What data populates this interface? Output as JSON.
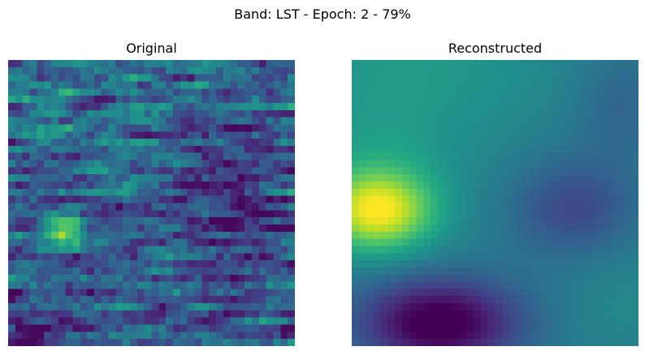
{
  "figure": {
    "title": "Band: LST - Epoch: 2 - 79%"
  },
  "chart_data": [
    {
      "type": "heatmap",
      "title": "Original",
      "colormap": "viridis",
      "axes_visible": false,
      "grid": false,
      "rows": 40,
      "cols": 40,
      "value_range": [
        0,
        1
      ],
      "features": [
        {
          "label": "bright hotspot",
          "center": [
            0.18,
            0.61
          ],
          "intensity": 0.95
        },
        {
          "label": "dark corner",
          "center": [
            0.05,
            0.97
          ],
          "intensity": 0.02
        }
      ]
    },
    {
      "type": "heatmap",
      "title": "Reconstructed",
      "colormap": "viridis",
      "axes_visible": false,
      "grid": false,
      "rows": 40,
      "cols": 40,
      "value_range": [
        0,
        1
      ],
      "features": [
        {
          "label": "bright blob",
          "center": [
            0.1,
            0.53
          ],
          "intensity": 0.95
        },
        {
          "label": "dark blob",
          "center": [
            0.3,
            0.93
          ],
          "intensity": 0.02
        },
        {
          "label": "mid-dark region",
          "center": [
            0.78,
            0.52
          ],
          "intensity": 0.28
        }
      ]
    }
  ]
}
